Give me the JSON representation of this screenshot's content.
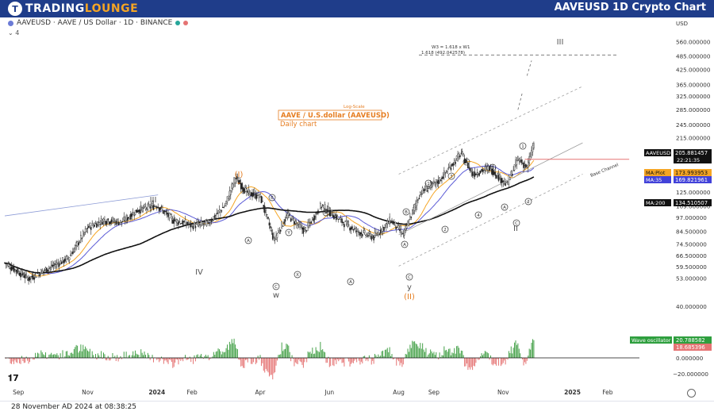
{
  "header": {
    "brand_prefix": "TRADING",
    "brand_highlight": "LOUNGE",
    "title": "AAVEUSD 1D Crypto Chart"
  },
  "symbol_line": "AAVEUSD · AAVE / US Dollar · 1D · BINANCE",
  "indicator_count": "4",
  "footer": {
    "timestamp": "28 November AD 2024 at 08:38:25"
  },
  "colors": {
    "up": "#26a69a",
    "down": "#333333",
    "ma_plot": "#f5a524",
    "ma35": "#5b5bd6",
    "ma200": "#111111",
    "osc_pos": "#43a047",
    "osc_neg": "#e57373",
    "channel": "#9e9e9e",
    "target": "#555555",
    "wave_orange": "#e67e22"
  },
  "annotations": {
    "log_scale": "Log-Scale",
    "chart_name": "AAVE / U.S.dollar (AAVEUSD)",
    "timeframe": "Daily chart",
    "target_title": "W3 = 1.618 x W1",
    "target_value": "1.618 (492.042578)",
    "base_channel": "Base Channel"
  },
  "waves": [
    {
      "text": "III",
      "color": "grey"
    },
    {
      "text": "IV",
      "color": "grey"
    },
    {
      "text": "(I)",
      "color": "orange"
    },
    {
      "text": "B",
      "color": "grey",
      "circled": true
    },
    {
      "text": "A",
      "color": "grey",
      "circled": true
    },
    {
      "text": "C",
      "color": "grey",
      "circled": true
    },
    {
      "text": "w",
      "color": "grey"
    },
    {
      "text": "X",
      "color": "grey",
      "circled": true
    },
    {
      "text": "x",
      "color": "grey"
    },
    {
      "text": "Y",
      "color": "grey",
      "circled": true
    },
    {
      "text": "X",
      "color": "grey",
      "circled": true
    },
    {
      "text": "A",
      "color": "grey",
      "circled": true
    },
    {
      "text": "B",
      "color": "grey",
      "circled": true
    },
    {
      "text": "A",
      "color": "grey",
      "circled": true
    },
    {
      "text": "C",
      "color": "grey",
      "circled": true
    },
    {
      "text": "y",
      "color": "grey"
    },
    {
      "text": "(II)",
      "color": "orange"
    },
    {
      "text": "1",
      "color": "grey",
      "circled": true
    },
    {
      "text": "2",
      "color": "grey",
      "circled": true
    },
    {
      "text": "3",
      "color": "grey",
      "circled": true
    },
    {
      "text": "4",
      "color": "grey",
      "circled": true
    },
    {
      "text": "5",
      "color": "grey",
      "circled": true
    },
    {
      "text": "A",
      "color": "grey",
      "circled": true
    },
    {
      "text": "B",
      "color": "grey",
      "circled": true
    },
    {
      "text": "C",
      "color": "grey",
      "circled": true
    },
    {
      "text": "1",
      "color": "grey",
      "circled": true
    },
    {
      "text": "2",
      "color": "grey",
      "circled": true
    },
    {
      "text": "II",
      "color": "grey"
    },
    {
      "text": "III",
      "color": "grey"
    }
  ],
  "chart_data": {
    "type": "candlestick",
    "scale": "log",
    "ylim": [
      36,
      620
    ],
    "yticks": [
      "560.000000",
      "485.000000",
      "425.000000",
      "365.000000",
      "325.000000",
      "285.000000",
      "245.000000",
      "215.000000",
      "185.000000",
      "145.000000",
      "125.000000",
      "109.000000",
      "97.000000",
      "84.500000",
      "74.500000",
      "66.500000",
      "59.500000",
      "53.000000",
      "40.000000"
    ],
    "xticks": [
      "Sep",
      "Nov",
      "2024",
      "Feb",
      "Apr",
      "Jun",
      "Aug",
      "Sep",
      "Nov",
      "2025",
      "Feb"
    ],
    "price_labels": [
      {
        "name": "AAVEUSD",
        "value": "205.881457",
        "sub": "22:21:35"
      },
      {
        "name": "MA:Plot",
        "value": "173.993953"
      },
      {
        "name": "MA:35",
        "value": "169.821961"
      },
      {
        "name": "MA:200",
        "value": "134.510507"
      }
    ],
    "oscillator": {
      "name": "Wave oscillator",
      "value": "20.788582",
      "value2": "18.685396",
      "yticks": [
        "0.000000",
        "−20.000000"
      ]
    },
    "waypoints": [
      {
        "date": "2023-08-20",
        "close": 62
      },
      {
        "date": "2023-09-10",
        "close": 53
      },
      {
        "date": "2023-09-25",
        "close": 58
      },
      {
        "date": "2023-10-15",
        "close": 65
      },
      {
        "date": "2023-11-01",
        "close": 88
      },
      {
        "date": "2023-11-15",
        "close": 95
      },
      {
        "date": "2023-12-01",
        "close": 93
      },
      {
        "date": "2023-12-15",
        "close": 105
      },
      {
        "date": "2024-01-01",
        "close": 110
      },
      {
        "date": "2024-01-15",
        "close": 95
      },
      {
        "date": "2024-02-01",
        "close": 90
      },
      {
        "date": "2024-02-15",
        "close": 92
      },
      {
        "date": "2024-03-01",
        "close": 110
      },
      {
        "date": "2024-03-10",
        "close": 145
      },
      {
        "date": "2024-03-20",
        "close": 125
      },
      {
        "date": "2024-04-01",
        "close": 120
      },
      {
        "date": "2024-04-13",
        "close": 78
      },
      {
        "date": "2024-04-25",
        "close": 100
      },
      {
        "date": "2024-05-10",
        "close": 85
      },
      {
        "date": "2024-05-25",
        "close": 110
      },
      {
        "date": "2024-06-10",
        "close": 95
      },
      {
        "date": "2024-06-25",
        "close": 85
      },
      {
        "date": "2024-07-10",
        "close": 80
      },
      {
        "date": "2024-07-25",
        "close": 95
      },
      {
        "date": "2024-08-05",
        "close": 82
      },
      {
        "date": "2024-08-20",
        "close": 125
      },
      {
        "date": "2024-09-05",
        "close": 140
      },
      {
        "date": "2024-09-25",
        "close": 185
      },
      {
        "date": "2024-10-05",
        "close": 150
      },
      {
        "date": "2024-10-20",
        "close": 160
      },
      {
        "date": "2024-11-04",
        "close": 135
      },
      {
        "date": "2024-11-14",
        "close": 175
      },
      {
        "date": "2024-11-22",
        "close": 160
      },
      {
        "date": "2024-11-28",
        "close": 205
      }
    ]
  }
}
